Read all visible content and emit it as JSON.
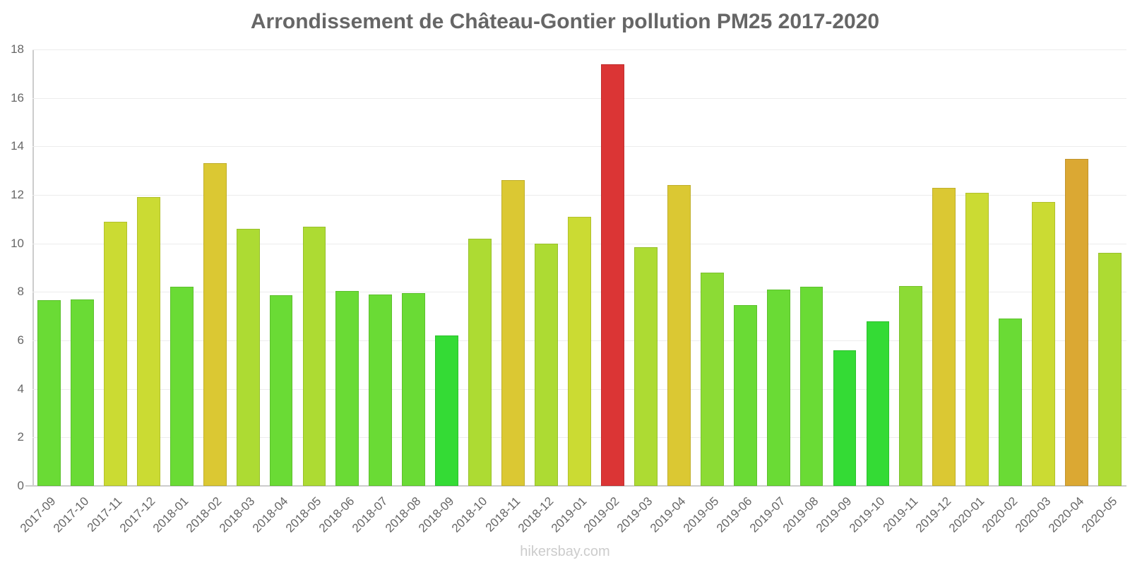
{
  "chart_data": {
    "type": "bar",
    "title": "Arrondissement de Château-Gontier pollution PM25 2017-2020",
    "xlabel": "",
    "ylabel": "",
    "ylim": [
      0,
      18
    ],
    "yticks": [
      0,
      2,
      4,
      6,
      8,
      10,
      12,
      14,
      16,
      18
    ],
    "grid": true,
    "legend": null,
    "categories": [
      "2017-09",
      "2017-10",
      "2017-11",
      "2017-12",
      "2018-01",
      "2018-02",
      "2018-03",
      "2018-04",
      "2018-05",
      "2018-06",
      "2018-07",
      "2018-08",
      "2018-09",
      "2018-10",
      "2018-11",
      "2018-12",
      "2019-01",
      "2019-02",
      "2019-03",
      "2019-04",
      "2019-05",
      "2019-06",
      "2019-07",
      "2019-08",
      "2019-09",
      "2019-10",
      "2019-11",
      "2019-12",
      "2020-01",
      "2020-02",
      "2020-03",
      "2020-04",
      "2020-05"
    ],
    "values": [
      7.65,
      7.7,
      10.9,
      11.9,
      8.2,
      13.3,
      10.6,
      7.85,
      10.7,
      8.05,
      7.9,
      7.95,
      6.2,
      10.2,
      12.6,
      10.0,
      11.1,
      17.4,
      9.85,
      12.4,
      8.8,
      7.45,
      8.1,
      8.2,
      5.6,
      6.8,
      8.25,
      12.3,
      12.1,
      6.9,
      11.7,
      13.5,
      9.6
    ],
    "colors": [
      "#6adb35",
      "#6adb35",
      "#cbdb33",
      "#cbdb33",
      "#6adb35",
      "#dbc833",
      "#addb33",
      "#6adb35",
      "#addb33",
      "#6adb35",
      "#6adb35",
      "#6adb35",
      "#34db35",
      "#addb33",
      "#dbc833",
      "#addb33",
      "#cbdb33",
      "#db3535",
      "#addb33",
      "#dbc833",
      "#8cdb35",
      "#6adb35",
      "#6adb35",
      "#6adb35",
      "#34db35",
      "#34db35",
      "#8cdb35",
      "#dbc833",
      "#cbdb33",
      "#6adb35",
      "#cbdb33",
      "#dba833",
      "#addb33"
    ]
  },
  "footer": {
    "watermark": "hikersbay.com"
  }
}
